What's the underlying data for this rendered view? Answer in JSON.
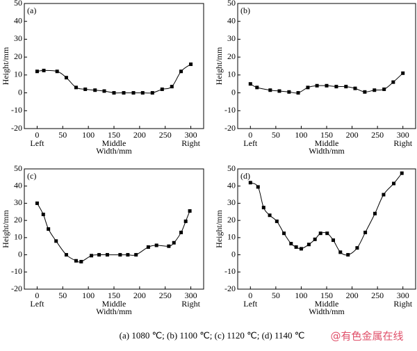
{
  "chart_data": [
    {
      "type": "line",
      "panel_label": "(a)",
      "xlabel": "Width/mm",
      "ylabel": "Height/mm",
      "color": "#000000",
      "x": [
        0,
        13,
        39,
        57,
        76,
        94,
        113,
        131,
        150,
        169,
        188,
        206,
        225,
        244,
        263,
        281,
        300
      ],
      "values": [
        12,
        12.5,
        12,
        8.5,
        3,
        2,
        1.5,
        1,
        0,
        0,
        0,
        0,
        0,
        2,
        3.5,
        12,
        16
      ],
      "xlim": [
        -25,
        325
      ],
      "xticks": [
        0,
        50,
        100,
        150,
        200,
        250,
        300
      ],
      "position_labels": [
        {
          "value": 0,
          "label": "Left"
        },
        {
          "value": 150,
          "label": "Middle"
        },
        {
          "value": 300,
          "label": "Right"
        }
      ],
      "ylim": [
        -20,
        50
      ],
      "yticks": [
        -20,
        -10,
        0,
        10,
        20,
        30,
        40,
        50
      ]
    },
    {
      "type": "line",
      "panel_label": "(b)",
      "xlabel": "Width/mm",
      "ylabel": "Height/mm",
      "color": "#000000",
      "x": [
        0,
        13,
        39,
        57,
        76,
        94,
        113,
        131,
        150,
        169,
        188,
        206,
        225,
        244,
        263,
        281,
        300
      ],
      "values": [
        5,
        3,
        1.5,
        1,
        0.5,
        0,
        3,
        4,
        4,
        3.5,
        3.5,
        2.5,
        0.5,
        1.5,
        2,
        6,
        11
      ],
      "xlim": [
        -25,
        325
      ],
      "xticks": [
        0,
        50,
        100,
        150,
        200,
        250,
        300
      ],
      "position_labels": [
        {
          "value": 0,
          "label": "Left"
        },
        {
          "value": 150,
          "label": "Middle"
        },
        {
          "value": 300,
          "label": "Right"
        }
      ],
      "ylim": [
        -20,
        50
      ],
      "yticks": [
        -20,
        -10,
        0,
        10,
        20,
        30,
        40,
        50
      ]
    },
    {
      "type": "line",
      "panel_label": "(c)",
      "xlabel": "Width/mm",
      "ylabel": "Height/mm",
      "color": "#000000",
      "x": [
        0,
        12,
        22,
        37,
        57,
        76,
        86,
        106,
        121,
        137,
        162,
        177,
        193,
        217,
        233,
        257,
        267,
        281,
        290,
        298
      ],
      "values": [
        30,
        23.5,
        15,
        8,
        0,
        -3.5,
        -4,
        -0.5,
        0,
        0,
        0,
        0,
        0,
        4.5,
        5.5,
        5,
        7,
        13,
        19.5,
        25.5
      ],
      "xlim": [
        -25,
        325
      ],
      "xticks": [
        0,
        50,
        100,
        150,
        200,
        250,
        300
      ],
      "position_labels": [
        {
          "value": 0,
          "label": "Left"
        },
        {
          "value": 150,
          "label": "Middle"
        },
        {
          "value": 300,
          "label": "Right"
        }
      ],
      "ylim": [
        -20,
        50
      ],
      "yticks": [
        -20,
        -10,
        0,
        10,
        20,
        30,
        40,
        50
      ]
    },
    {
      "type": "line",
      "panel_label": "(d)",
      "xlabel": "Width/mm",
      "ylabel": "Height/mm",
      "color": "#000000",
      "x": [
        0,
        15,
        26,
        38,
        52,
        66,
        80,
        90,
        100,
        115,
        127,
        138,
        151,
        163,
        177,
        192,
        210,
        226,
        245,
        262,
        282,
        298
      ],
      "values": [
        42,
        39.5,
        27.5,
        23,
        19.5,
        12.5,
        6.5,
        4.5,
        3.5,
        6,
        9,
        12.5,
        12.5,
        8.5,
        1.5,
        0,
        4,
        13,
        24,
        35,
        41.5,
        47.5
      ],
      "xlim": [
        -25,
        325
      ],
      "xticks": [
        0,
        50,
        100,
        150,
        200,
        250,
        300
      ],
      "position_labels": [
        {
          "value": 0,
          "label": "Left"
        },
        {
          "value": 150,
          "label": "Middle"
        },
        {
          "value": 300,
          "label": "Right"
        }
      ],
      "ylim": [
        -20,
        50
      ],
      "yticks": [
        -20,
        -10,
        0,
        10,
        20,
        30,
        40,
        50
      ]
    }
  ],
  "caption": "(a) 1080 ℃; (b) 1100 ℃; (c) 1120 ℃; (d) 1140 ℃",
  "watermark": "@有色金属在线"
}
